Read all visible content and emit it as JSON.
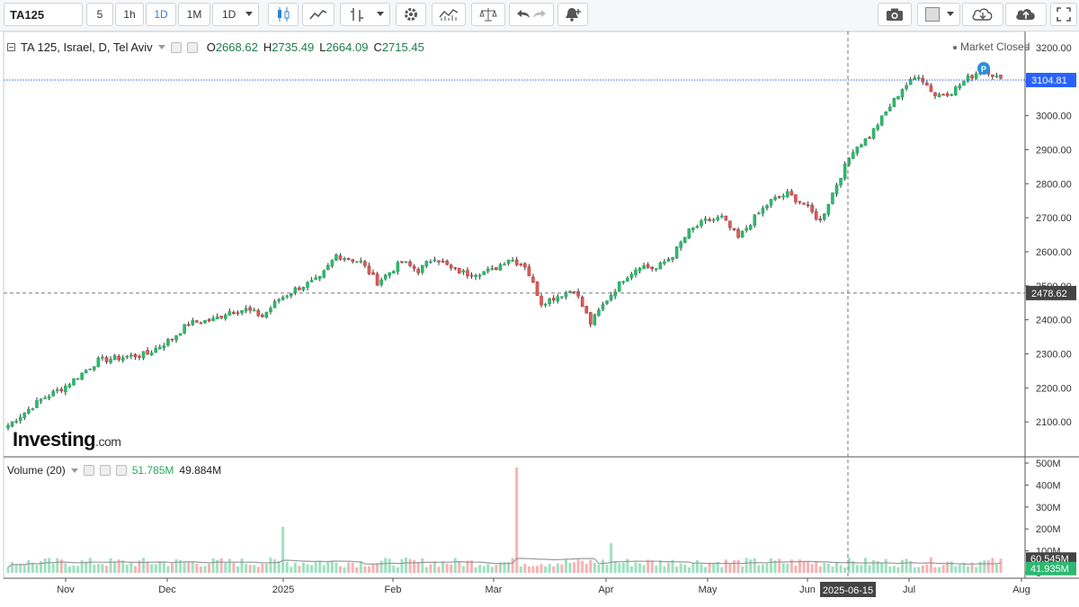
{
  "toolbar": {
    "symbol": "TA125",
    "intervals": [
      "5",
      "1h",
      "1D",
      "1M",
      "1D"
    ],
    "active_interval": "1D"
  },
  "legend": {
    "title": "TA 125, Israel, D, Tel Aviv",
    "open_label": "O",
    "open": "2668.62",
    "high_label": "H",
    "high": "2735.49",
    "low_label": "L",
    "low": "2664.09",
    "close_label": "C",
    "close": "2715.45",
    "market_status": "Market Closed"
  },
  "volume_legend": {
    "title": "Volume (20)",
    "v1": "51.785M",
    "v2": "49.884M"
  },
  "price_axis": {
    "ticks": [
      "3200.00",
      "3100.00",
      "3000.00",
      "2900.00",
      "2800.00",
      "2700.00",
      "2600.00",
      "2500.00",
      "2400.00",
      "2300.00",
      "2200.00",
      "2100.00"
    ],
    "last_price": "3104.81",
    "crosshair_price": "2478.62"
  },
  "volume_axis": {
    "ticks": [
      "500M",
      "400M",
      "300M",
      "200M",
      "100M",
      "0"
    ],
    "label1": "60.545M",
    "label2": "41.935M"
  },
  "time_axis": {
    "labels": [
      "Nov",
      "Dec",
      "2025",
      "Feb",
      "Mar",
      "Apr",
      "May",
      "Jun",
      "Jul",
      "Aug"
    ],
    "crosshair_date": "2025-06-15"
  },
  "brand": {
    "name": "Investing",
    "suffix": ".com"
  },
  "colors": {
    "up": "#26a65b",
    "up_fill": "#2eb872",
    "down": "#e05c5c",
    "vol_up": "#9fe0c2",
    "vol_down": "#f6b3b3",
    "price_line": "#2962ff"
  },
  "chart_data": {
    "type": "candlestick",
    "ylim": [
      2050,
      3250
    ],
    "volume_ylim": [
      0,
      500
    ],
    "x_labels": [
      "Nov",
      "Dec",
      "2025",
      "Feb",
      "Mar",
      "Apr",
      "May",
      "Jun",
      "Jul",
      "Aug"
    ],
    "anchors": [
      [
        0,
        2090
      ],
      [
        8,
        2165
      ],
      [
        14,
        2205
      ],
      [
        22,
        2280
      ],
      [
        28,
        2290
      ],
      [
        34,
        2300
      ],
      [
        40,
        2345
      ],
      [
        44,
        2390
      ],
      [
        50,
        2400
      ],
      [
        54,
        2425
      ],
      [
        58,
        2430
      ],
      [
        62,
        2410
      ],
      [
        66,
        2460
      ],
      [
        70,
        2490
      ],
      [
        76,
        2520
      ],
      [
        80,
        2590
      ],
      [
        86,
        2570
      ],
      [
        90,
        2510
      ],
      [
        96,
        2570
      ],
      [
        100,
        2545
      ],
      [
        104,
        2585
      ],
      [
        108,
        2550
      ],
      [
        112,
        2535
      ],
      [
        118,
        2545
      ],
      [
        122,
        2580
      ],
      [
        126,
        2560
      ],
      [
        130,
        2450
      ],
      [
        134,
        2470
      ],
      [
        138,
        2490
      ],
      [
        142,
        2390
      ],
      [
        146,
        2460
      ],
      [
        150,
        2520
      ],
      [
        154,
        2560
      ],
      [
        158,
        2550
      ],
      [
        162,
        2590
      ],
      [
        166,
        2660
      ],
      [
        170,
        2690
      ],
      [
        174,
        2700
      ],
      [
        178,
        2640
      ],
      [
        182,
        2700
      ],
      [
        186,
        2750
      ],
      [
        190,
        2770
      ],
      [
        194,
        2740
      ],
      [
        198,
        2690
      ],
      [
        202,
        2800
      ],
      [
        206,
        2900
      ],
      [
        210,
        2940
      ],
      [
        214,
        3010
      ],
      [
        218,
        3080
      ],
      [
        222,
        3120
      ],
      [
        226,
        3060
      ],
      [
        230,
        3070
      ],
      [
        234,
        3110
      ],
      [
        238,
        3140
      ],
      [
        242,
        3104
      ]
    ],
    "volume_spikes": [
      [
        67,
        210
      ],
      [
        124,
        480
      ],
      [
        147,
        135
      ]
    ],
    "volume_base": 50
  }
}
